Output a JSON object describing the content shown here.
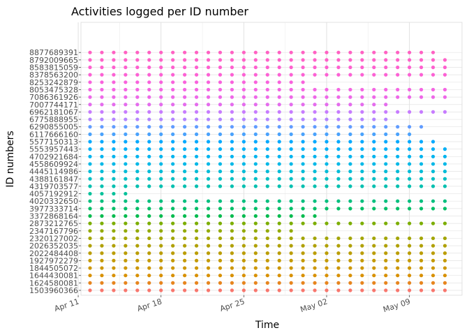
{
  "chart_data": {
    "type": "scatter",
    "title": "Activities logged per ID number",
    "xlabel": "Time",
    "ylabel": "ID numbers",
    "x_start": "2016-04-12",
    "x_end": "2016-05-12",
    "x_ticks": [
      {
        "label": "Apr 11",
        "date": "2016-04-11"
      },
      {
        "label": "Apr 18",
        "date": "2016-04-18"
      },
      {
        "label": "Apr 25",
        "date": "2016-04-25"
      },
      {
        "label": "May 02",
        "date": "2016-05-02"
      },
      {
        "label": "May 09",
        "date": "2016-05-09"
      }
    ],
    "grid": true,
    "legend": "none",
    "series": [
      {
        "id": "8877689391",
        "color": "#ff61c3",
        "first": "2016-04-12",
        "last": "2016-05-11",
        "missing": []
      },
      {
        "id": "8792009665",
        "color": "#ff61c9",
        "first": "2016-04-12",
        "last": "2016-05-12",
        "missing": []
      },
      {
        "id": "8583815059",
        "color": "#fe61cf",
        "first": "2016-04-12",
        "last": "2016-05-12",
        "missing": []
      },
      {
        "id": "8378563200",
        "color": "#fc61d4",
        "first": "2016-04-12",
        "last": "2016-05-12",
        "missing": []
      },
      {
        "id": "8253242879",
        "color": "#f962dd",
        "first": "2016-04-12",
        "last": "2016-04-30",
        "missing": []
      },
      {
        "id": "8053475328",
        "color": "#f564e3",
        "first": "2016-04-12",
        "last": "2016-05-12",
        "missing": []
      },
      {
        "id": "7086361926",
        "color": "#ee68e8",
        "first": "2016-04-12",
        "last": "2016-05-12",
        "missing": []
      },
      {
        "id": "7007744171",
        "color": "#e46ced",
        "first": "2016-04-12",
        "last": "2016-05-07",
        "missing": []
      },
      {
        "id": "6962181067",
        "color": "#c77cff",
        "first": "2016-04-12",
        "last": "2016-05-12",
        "missing": []
      },
      {
        "id": "6775888955",
        "color": "#b385ff",
        "first": "2016-04-12",
        "last": "2016-05-07",
        "missing": []
      },
      {
        "id": "6290855005",
        "color": "#619cff",
        "first": "2016-04-12",
        "last": "2016-05-10",
        "missing": []
      },
      {
        "id": "6117666160",
        "color": "#4aa2fc",
        "first": "2016-04-12",
        "last": "2016-05-09",
        "missing": []
      },
      {
        "id": "5577150313",
        "color": "#00a9ff",
        "first": "2016-04-12",
        "last": "2016-05-11",
        "missing": []
      },
      {
        "id": "5553957443",
        "color": "#00b0f6",
        "first": "2016-04-12",
        "last": "2016-05-12",
        "missing": []
      },
      {
        "id": "4702921684",
        "color": "#00b4ef",
        "first": "2016-04-12",
        "last": "2016-05-12",
        "missing": []
      },
      {
        "id": "4558609924",
        "color": "#00b8e7",
        "first": "2016-04-12",
        "last": "2016-05-12",
        "missing": []
      },
      {
        "id": "4445114986",
        "color": "#00bcd8",
        "first": "2016-04-12",
        "last": "2016-05-12",
        "missing": []
      },
      {
        "id": "4388161847",
        "color": "#00bfc4",
        "first": "2016-04-12",
        "last": "2016-05-12",
        "missing": []
      },
      {
        "id": "4319703577",
        "color": "#00c0b0",
        "first": "2016-04-12",
        "last": "2016-05-12",
        "missing": []
      },
      {
        "id": "4057192912",
        "color": "#00c19a",
        "first": "2016-04-12",
        "last": "2016-04-15",
        "missing": []
      },
      {
        "id": "4020332650",
        "color": "#00bf7d",
        "first": "2016-04-12",
        "last": "2016-05-12",
        "missing": []
      },
      {
        "id": "3977333714",
        "color": "#00be67",
        "first": "2016-04-12",
        "last": "2016-05-12",
        "missing": []
      },
      {
        "id": "3372868164",
        "color": "#00bb4e",
        "first": "2016-04-12",
        "last": "2016-05-01",
        "missing": []
      },
      {
        "id": "2873212765",
        "color": "#7cae00",
        "first": "2016-04-12",
        "last": "2016-05-12",
        "missing": []
      },
      {
        "id": "2347167796",
        "color": "#93aa00",
        "first": "2016-04-12",
        "last": "2016-04-29",
        "missing": []
      },
      {
        "id": "2320127002",
        "color": "#a3a500",
        "first": "2016-04-12",
        "last": "2016-05-12",
        "missing": []
      },
      {
        "id": "2026352035",
        "color": "#b0a000",
        "first": "2016-04-12",
        "last": "2016-05-12",
        "missing": []
      },
      {
        "id": "2022484408",
        "color": "#bb9d00",
        "first": "2016-04-12",
        "last": "2016-05-12",
        "missing": []
      },
      {
        "id": "1927972279",
        "color": "#c49a00",
        "first": "2016-04-12",
        "last": "2016-05-12",
        "missing": []
      },
      {
        "id": "1844505072",
        "color": "#cd9600",
        "first": "2016-04-12",
        "last": "2016-05-12",
        "missing": []
      },
      {
        "id": "1644430081",
        "color": "#d89000",
        "first": "2016-04-12",
        "last": "2016-05-12",
        "missing": []
      },
      {
        "id": "1624580081",
        "color": "#e7851e",
        "first": "2016-04-12",
        "last": "2016-05-12",
        "missing": []
      },
      {
        "id": "1503960366",
        "color": "#f8766d",
        "first": "2016-04-12",
        "last": "2016-05-12",
        "missing": []
      }
    ]
  }
}
